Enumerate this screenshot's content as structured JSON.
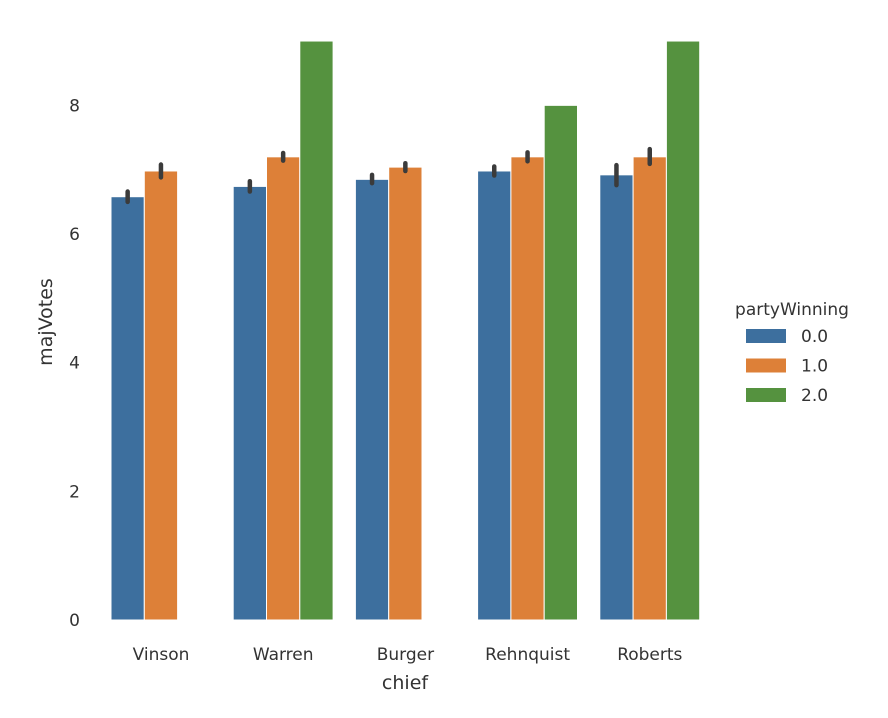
{
  "chart_data": {
    "type": "bar",
    "categories": [
      "Vinson",
      "Warren",
      "Burger",
      "Rehnquist",
      "Roberts"
    ],
    "xlabel": "chief",
    "ylabel": "majVotes",
    "ylim": [
      0,
      9
    ],
    "yticks": [
      0,
      2,
      4,
      6,
      8
    ],
    "grid": false,
    "legend": {
      "title": "partyWinning",
      "placement": "right"
    },
    "series": [
      {
        "name": "0.0",
        "color": "#3d6f9e",
        "values": [
          6.58,
          6.74,
          6.85,
          6.98,
          6.92
        ],
        "ci": [
          [
            6.5,
            6.66
          ],
          [
            6.66,
            6.82
          ],
          [
            6.79,
            6.92
          ],
          [
            6.91,
            7.05
          ],
          [
            6.76,
            7.07
          ]
        ]
      },
      {
        "name": "1.0",
        "color": "#dd8038",
        "values": [
          6.98,
          7.2,
          7.04,
          7.2,
          7.2
        ],
        "ci": [
          [
            6.88,
            7.08
          ],
          [
            7.14,
            7.26
          ],
          [
            6.98,
            7.1
          ],
          [
            7.13,
            7.27
          ],
          [
            7.09,
            7.32
          ]
        ]
      },
      {
        "name": "2.0",
        "color": "#55923f",
        "values": [
          null,
          9.0,
          null,
          8.0,
          9.0
        ],
        "ci": [
          null,
          null,
          null,
          null,
          null
        ]
      }
    ]
  }
}
